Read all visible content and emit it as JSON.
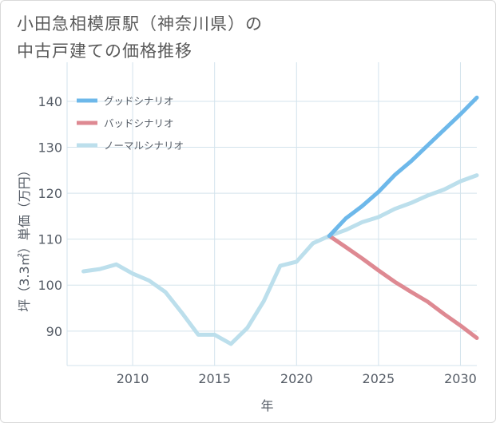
{
  "title_lines": [
    "小田急相模原駅（神奈川県）の",
    "中古戸建ての価格推移"
  ],
  "colors": {
    "good": "#6db8ea",
    "bad": "#de8992",
    "normal": "#bcdfec",
    "grid": "#d3e3ec",
    "axis": "#555c66"
  },
  "chart_data": {
    "type": "line",
    "title": "小田急相模原駅（神奈川県）の中古戸建ての価格推移",
    "xlabel": "年",
    "ylabel": "坪（3.3㎡）単価（万円）",
    "xlim": [
      2006,
      2031
    ],
    "ylim": [
      82.5,
      148.5
    ],
    "xticks": [
      2010,
      2015,
      2020,
      2025,
      2030
    ],
    "yticks": [
      90,
      100,
      110,
      120,
      130,
      140
    ],
    "grid": true,
    "legend_position": "top-left",
    "series": [
      {
        "name": "グッドシナリオ",
        "color_key": "good",
        "x": [
          2022,
          2023,
          2024,
          2025,
          2026,
          2027,
          2028,
          2029,
          2030,
          2031
        ],
        "y": [
          110.7,
          114.5,
          117.2,
          120.3,
          124.0,
          127.0,
          130.4,
          133.8,
          137.2,
          140.8
        ]
      },
      {
        "name": "バッドシナリオ",
        "color_key": "bad",
        "x": [
          2022,
          2023,
          2024,
          2025,
          2026,
          2027,
          2028,
          2029,
          2030,
          2031
        ],
        "y": [
          110.7,
          108.3,
          105.8,
          103.2,
          100.7,
          98.5,
          96.4,
          93.7,
          91.2,
          88.5
        ]
      },
      {
        "name": "ノーマルシナリオ",
        "color_key": "normal",
        "x": [
          2007,
          2008,
          2009,
          2010,
          2011,
          2012,
          2013,
          2014,
          2015,
          2016,
          2017,
          2018,
          2019,
          2020,
          2021,
          2022,
          2023,
          2024,
          2025,
          2026,
          2027,
          2028,
          2029,
          2030,
          2031
        ],
        "y": [
          103.0,
          103.5,
          104.5,
          102.5,
          101.0,
          98.5,
          94.0,
          89.2,
          89.2,
          87.2,
          90.7,
          96.5,
          104.2,
          105.1,
          109.1,
          110.7,
          112.0,
          113.7,
          114.8,
          116.6,
          117.9,
          119.5,
          120.8,
          122.6,
          123.9
        ]
      }
    ]
  }
}
